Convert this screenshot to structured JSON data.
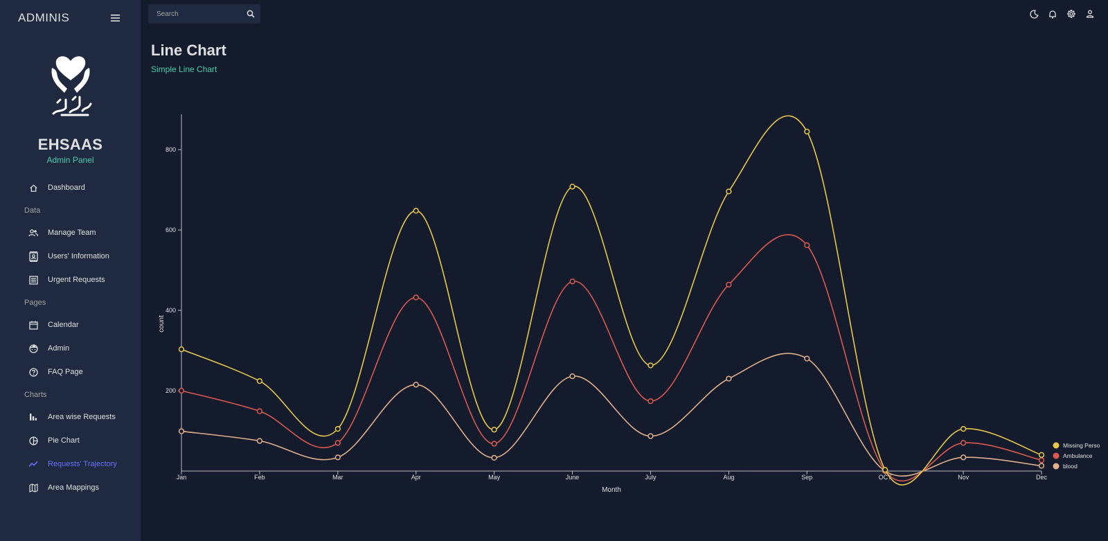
{
  "sidebar": {
    "brand": "ADMINIS",
    "org_name": "EHSAAS",
    "org_sub": "Admin Panel",
    "items": {
      "dashboard": "Dashboard",
      "section_data": "Data",
      "manage_team": "Manage Team",
      "users_info": "Users' Information",
      "urgent": "Urgent Requests",
      "section_pages": "Pages",
      "calendar": "Calendar",
      "admin": "Admin",
      "faq": "FAQ Page",
      "section_charts": "Charts",
      "area_wise": "Area wise Requests",
      "pie": "Pie Chart",
      "trajectory": "Requests' Trajectory",
      "mappings": "Area Mappings"
    },
    "active_color": "#6870fa"
  },
  "search": {
    "placeholder": "Search"
  },
  "header": {
    "title": "Line Chart",
    "subtitle": "Simple Line Chart"
  },
  "chart_data": {
    "type": "line",
    "categories": [
      "Jan",
      "Feb",
      "Mar",
      "Apr",
      "May",
      "June",
      "July",
      "Aug",
      "Sep",
      "OCT",
      "Nov",
      "Dec"
    ],
    "series": [
      {
        "name": "Missing Perso",
        "color": "#e8c84a",
        "values": [
          303,
          224,
          105,
          648,
          103,
          708,
          263,
          696,
          845,
          3,
          105,
          40
        ]
      },
      {
        "name": "Ambulance",
        "color": "#db5a4f",
        "values": [
          200,
          149,
          70,
          432,
          68,
          472,
          174,
          464,
          562,
          0,
          70,
          27
        ]
      },
      {
        "name": "blood",
        "color": "#e2b08a",
        "values": [
          99,
          75,
          34,
          215,
          33,
          236,
          87,
          230,
          280,
          0,
          34,
          13
        ]
      }
    ],
    "xlabel": "Month",
    "ylabel": "count",
    "yticks": [
      200,
      400,
      600,
      800
    ],
    "ylim": [
      0,
      888
    ],
    "legend": "right",
    "grid": false
  }
}
